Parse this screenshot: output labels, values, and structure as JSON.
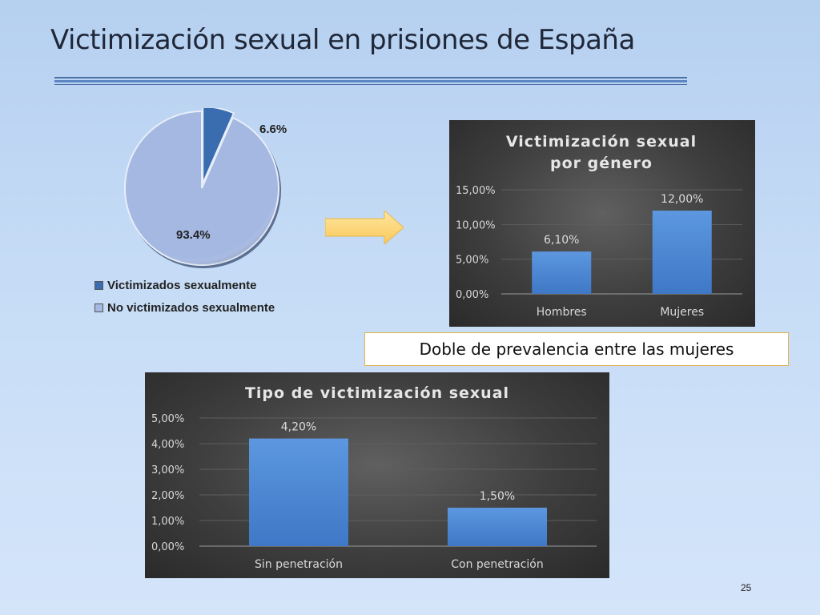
{
  "slide": {
    "title": "Victimización sexual en prisiones de España",
    "note": "Doble de prevalencia entre las mujeres",
    "page_number": "25"
  },
  "chart_data": [
    {
      "type": "pie",
      "categories": [
        "Victimizados sexualmente",
        "No victimizados sexualmente"
      ],
      "values": [
        6.6,
        93.4
      ],
      "labels": [
        "6.6%",
        "93.4%"
      ],
      "colors": [
        "#3a6cb0",
        "#a4b8e2"
      ],
      "legend": "bottom-left"
    },
    {
      "type": "bar",
      "title": "Victimización sexual por género",
      "title_lines": [
        "Victimización sexual",
        "por género"
      ],
      "categories": [
        "Hombres",
        "Mujeres"
      ],
      "values": [
        6.1,
        12.0
      ],
      "labels": [
        "6,10%",
        "12,00%"
      ],
      "yticks": [
        "0,00%",
        "5,00%",
        "10,00%",
        "15,00%"
      ],
      "ylim": [
        0,
        15
      ],
      "grid": true,
      "bar_color": "#4e8ad8"
    },
    {
      "type": "bar",
      "title": "Tipo de victimización sexual",
      "categories": [
        "Sin penetración",
        "Con penetración"
      ],
      "values": [
        4.2,
        1.5
      ],
      "labels": [
        "4,20%",
        "1,50%"
      ],
      "yticks": [
        "0,00%",
        "1,00%",
        "2,00%",
        "3,00%",
        "4,00%",
        "5,00%"
      ],
      "ylim": [
        0,
        5
      ],
      "grid": true,
      "bar_color": "#4e8ad8"
    }
  ]
}
